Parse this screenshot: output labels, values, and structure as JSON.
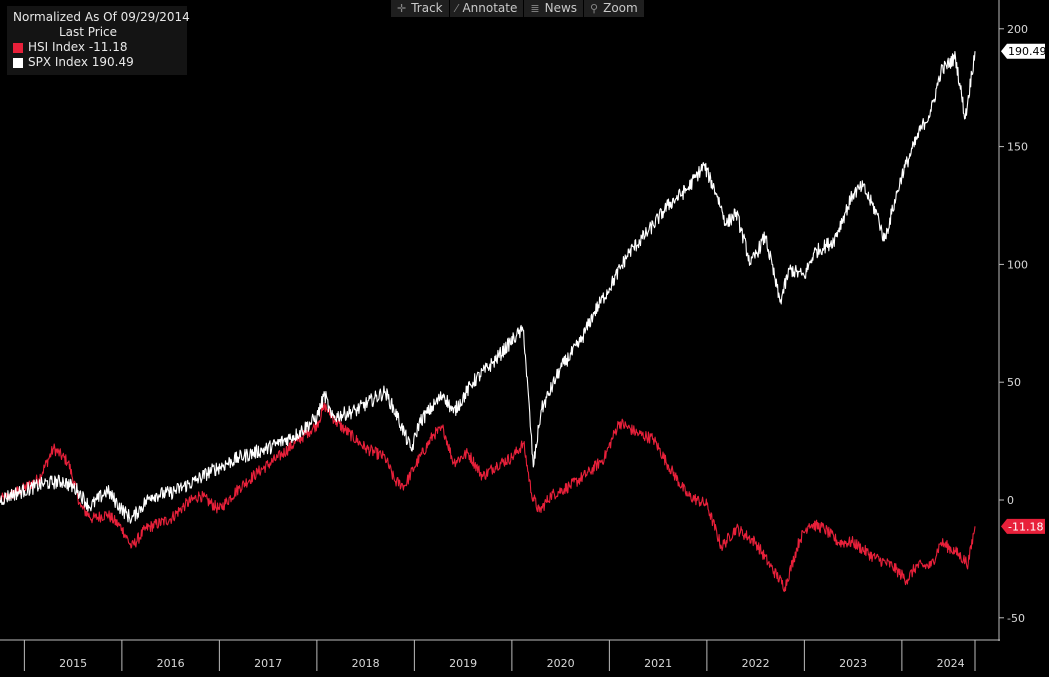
{
  "legend": {
    "title": "Normalized As Of 09/29/2014",
    "subtitle": "Last Price",
    "series_labels": [
      "HSI Index  -11.18",
      "SPX Index 190.49"
    ]
  },
  "toolbar": [
    {
      "label": "Track",
      "icon": "crosshair-icon",
      "glyph": "✛"
    },
    {
      "label": "Annotate",
      "icon": "pencil-icon",
      "glyph": "⁄"
    },
    {
      "label": "News",
      "icon": "news-icon",
      "glyph": "≣"
    },
    {
      "label": "Zoom",
      "icon": "magnifier-icon",
      "glyph": "⚲"
    }
  ],
  "colors": {
    "HSI": "#e8203a",
    "SPX": "#ffffff",
    "background": "#000000"
  },
  "chart_data": {
    "type": "line",
    "title": "Normalized As Of 09/29/2014",
    "subtitle": "Last Price",
    "x_ticks": [
      "2015",
      "2016",
      "2017",
      "2018",
      "2019",
      "2020",
      "2021",
      "2022",
      "2023",
      "2024"
    ],
    "y_ticks": [
      200,
      150,
      100,
      50,
      0,
      -50
    ],
    "xlim": [
      2014.75,
      2024.75
    ],
    "ylim": [
      -55,
      205
    ],
    "grid": false,
    "legend_position": "top-left",
    "series": [
      {
        "name": "SPX Index",
        "last_value_label": "190.49",
        "points": [
          [
            2014.75,
            0
          ],
          [
            2014.85,
            2
          ],
          [
            2015.0,
            4
          ],
          [
            2015.2,
            7
          ],
          [
            2015.4,
            8
          ],
          [
            2015.55,
            4
          ],
          [
            2015.67,
            -3
          ],
          [
            2015.85,
            4
          ],
          [
            2016.0,
            -4
          ],
          [
            2016.1,
            -8
          ],
          [
            2016.3,
            2
          ],
          [
            2016.5,
            3
          ],
          [
            2016.75,
            8
          ],
          [
            2016.9,
            12
          ],
          [
            2017.2,
            18
          ],
          [
            2017.5,
            22
          ],
          [
            2017.8,
            28
          ],
          [
            2018.0,
            35
          ],
          [
            2018.08,
            45
          ],
          [
            2018.15,
            35
          ],
          [
            2018.4,
            38
          ],
          [
            2018.7,
            46
          ],
          [
            2018.83,
            35
          ],
          [
            2018.97,
            21
          ],
          [
            2019.05,
            33
          ],
          [
            2019.3,
            45
          ],
          [
            2019.4,
            37
          ],
          [
            2019.6,
            50
          ],
          [
            2019.8,
            58
          ],
          [
            2020.05,
            70
          ],
          [
            2020.12,
            72
          ],
          [
            2020.22,
            14
          ],
          [
            2020.3,
            38
          ],
          [
            2020.5,
            56
          ],
          [
            2020.7,
            67
          ],
          [
            2020.85,
            80
          ],
          [
            2021.0,
            90
          ],
          [
            2021.2,
            105
          ],
          [
            2021.4,
            114
          ],
          [
            2021.6,
            125
          ],
          [
            2021.8,
            132
          ],
          [
            2021.97,
            142
          ],
          [
            2022.1,
            130
          ],
          [
            2022.2,
            117
          ],
          [
            2022.3,
            122
          ],
          [
            2022.45,
            100
          ],
          [
            2022.6,
            112
          ],
          [
            2022.75,
            84
          ],
          [
            2022.85,
            98
          ],
          [
            2023.0,
            95
          ],
          [
            2023.1,
            105
          ],
          [
            2023.3,
            110
          ],
          [
            2023.5,
            130
          ],
          [
            2023.6,
            133
          ],
          [
            2023.75,
            121
          ],
          [
            2023.82,
            110
          ],
          [
            2024.0,
            138
          ],
          [
            2024.2,
            158
          ],
          [
            2024.3,
            165
          ],
          [
            2024.4,
            182
          ],
          [
            2024.55,
            188
          ],
          [
            2024.65,
            162
          ],
          [
            2024.75,
            190.49
          ]
        ]
      },
      {
        "name": "HSI Index",
        "last_value_label": "-11.18",
        "points": [
          [
            2014.75,
            0
          ],
          [
            2014.9,
            3
          ],
          [
            2015.0,
            5
          ],
          [
            2015.15,
            9
          ],
          [
            2015.3,
            22
          ],
          [
            2015.45,
            16
          ],
          [
            2015.58,
            -3
          ],
          [
            2015.7,
            -8
          ],
          [
            2015.85,
            -6
          ],
          [
            2016.0,
            -12
          ],
          [
            2016.1,
            -20
          ],
          [
            2016.25,
            -12
          ],
          [
            2016.5,
            -8
          ],
          [
            2016.65,
            -2
          ],
          [
            2016.8,
            2
          ],
          [
            2017.0,
            -4
          ],
          [
            2017.2,
            5
          ],
          [
            2017.4,
            12
          ],
          [
            2017.6,
            18
          ],
          [
            2017.8,
            25
          ],
          [
            2018.0,
            32
          ],
          [
            2018.08,
            40
          ],
          [
            2018.2,
            33
          ],
          [
            2018.5,
            22
          ],
          [
            2018.7,
            18
          ],
          [
            2018.8,
            8
          ],
          [
            2018.9,
            6
          ],
          [
            2019.0,
            14
          ],
          [
            2019.2,
            28
          ],
          [
            2019.3,
            30
          ],
          [
            2019.4,
            16
          ],
          [
            2019.55,
            20
          ],
          [
            2019.7,
            10
          ],
          [
            2019.85,
            15
          ],
          [
            2020.0,
            18
          ],
          [
            2020.12,
            24
          ],
          [
            2020.2,
            3
          ],
          [
            2020.28,
            -5
          ],
          [
            2020.4,
            2
          ],
          [
            2020.6,
            6
          ],
          [
            2020.8,
            12
          ],
          [
            2020.95,
            18
          ],
          [
            2021.1,
            33
          ],
          [
            2021.3,
            28
          ],
          [
            2021.45,
            26
          ],
          [
            2021.6,
            15
          ],
          [
            2021.8,
            2
          ],
          [
            2022.0,
            -2
          ],
          [
            2022.15,
            -20
          ],
          [
            2022.3,
            -12
          ],
          [
            2022.5,
            -18
          ],
          [
            2022.65,
            -28
          ],
          [
            2022.8,
            -37
          ],
          [
            2022.95,
            -17
          ],
          [
            2023.05,
            -10
          ],
          [
            2023.2,
            -12
          ],
          [
            2023.35,
            -18
          ],
          [
            2023.5,
            -18
          ],
          [
            2023.7,
            -24
          ],
          [
            2023.9,
            -28
          ],
          [
            2024.05,
            -34
          ],
          [
            2024.15,
            -28
          ],
          [
            2024.3,
            -28
          ],
          [
            2024.4,
            -18
          ],
          [
            2024.55,
            -22
          ],
          [
            2024.68,
            -27
          ],
          [
            2024.75,
            -11.18
          ]
        ]
      }
    ]
  }
}
